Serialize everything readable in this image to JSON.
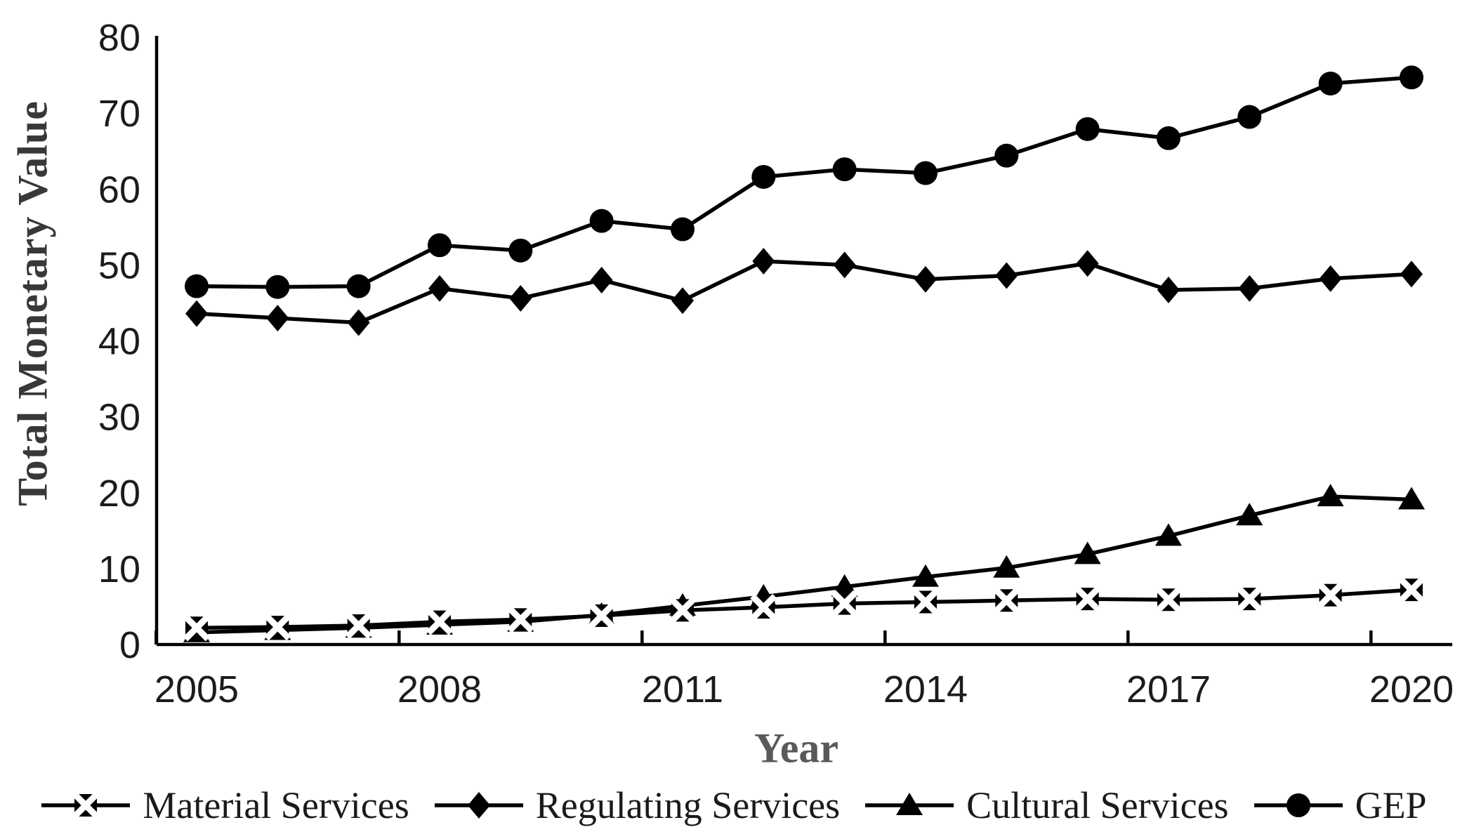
{
  "chart_data": {
    "type": "line",
    "title": "",
    "xlabel": "Year",
    "ylabel": "Total Monetary Value",
    "x": [
      2005,
      2006,
      2007,
      2008,
      2009,
      2010,
      2011,
      2012,
      2013,
      2014,
      2015,
      2016,
      2017,
      2018,
      2019,
      2020
    ],
    "x_tick_labels": [
      "2005",
      "2008",
      "2011",
      "2014",
      "2017",
      "2020"
    ],
    "x_tick_label_years": [
      2005,
      2008,
      2011,
      2014,
      2017,
      2020
    ],
    "ylim": [
      0,
      80
    ],
    "y_ticks": [
      0,
      10,
      20,
      30,
      40,
      50,
      60,
      70,
      80
    ],
    "grid": false,
    "legend_position": "bottom",
    "series": [
      {
        "name": "Material Services",
        "marker": "x-square",
        "values": [
          2.2,
          2.3,
          2.5,
          3.0,
          3.3,
          3.8,
          4.5,
          4.9,
          5.4,
          5.6,
          5.8,
          6.0,
          5.9,
          6.0,
          6.5,
          7.2
        ]
      },
      {
        "name": "Regulating Services",
        "marker": "diamond",
        "values": [
          43.6,
          43.0,
          42.4,
          46.9,
          45.6,
          48.0,
          45.3,
          50.5,
          50.0,
          48.1,
          48.6,
          50.2,
          46.7,
          46.9,
          48.2,
          48.8
        ]
      },
      {
        "name": "Cultural Services",
        "marker": "triangle",
        "values": [
          1.6,
          1.9,
          2.2,
          2.6,
          3.0,
          3.9,
          5.1,
          6.3,
          7.6,
          8.9,
          10.1,
          11.9,
          14.3,
          17.0,
          19.5,
          19.1
        ]
      },
      {
        "name": "GEP",
        "marker": "circle",
        "values": [
          47.2,
          47.1,
          47.2,
          52.6,
          51.9,
          55.8,
          54.7,
          61.6,
          62.6,
          62.1,
          64.4,
          67.9,
          66.7,
          69.5,
          73.9,
          74.7
        ]
      }
    ]
  },
  "colors": {
    "line": "#000000",
    "marker": "#000000",
    "axis": "#000000",
    "tick_text": "#1c1c1c",
    "ylabel_text": "#383838",
    "xlabel_text": "#595959",
    "legend_text": "#1a1a1a",
    "background": "#ffffff"
  }
}
